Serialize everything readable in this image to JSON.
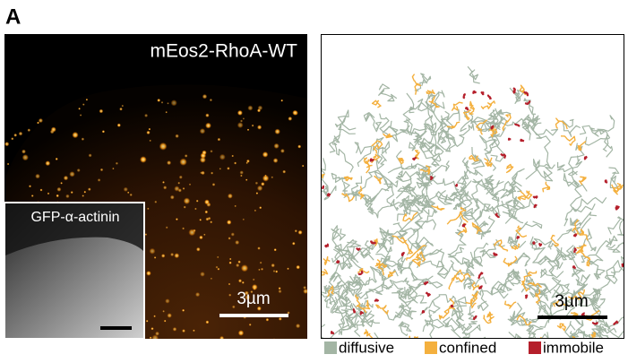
{
  "panel_label": "A",
  "left_image": {
    "title": "mEos2-RhoA-WT",
    "inset_title": "GFP-α-actinin",
    "scale_bar": "3µm"
  },
  "right_image": {
    "scale_bar": "3µm"
  },
  "legend": [
    {
      "label": "diffusive",
      "color": "#a3b5a4"
    },
    {
      "label": "confined",
      "color": "#f4b03e"
    },
    {
      "label": "immobile",
      "color": "#b51f2b"
    }
  ]
}
